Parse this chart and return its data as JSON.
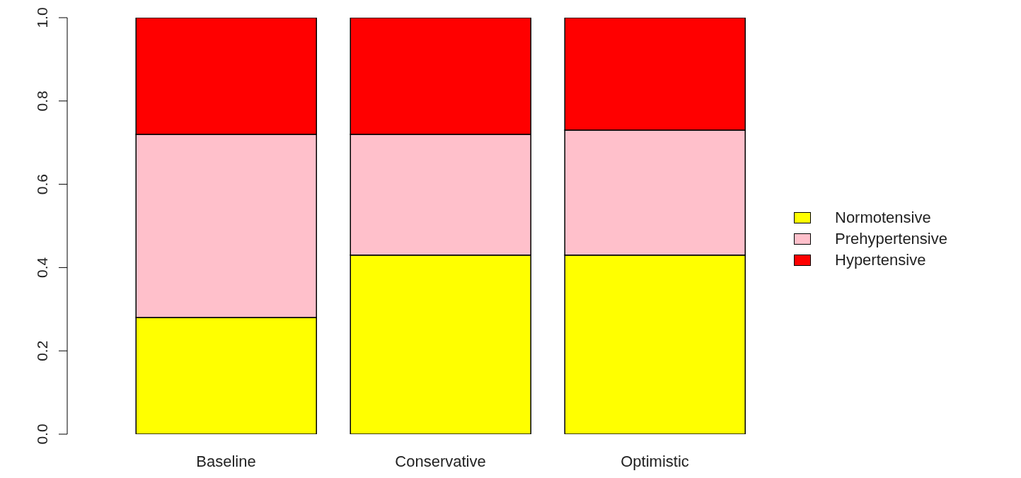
{
  "chart_data": {
    "type": "bar",
    "stacked": true,
    "categories": [
      "Baseline",
      "Conservative",
      "Optimistic"
    ],
    "series": [
      {
        "name": "Normotensive",
        "color": "#ffff00",
        "values": [
          0.28,
          0.43,
          0.43
        ]
      },
      {
        "name": "Prehypertensive",
        "color": "#ffc0cb",
        "values": [
          0.44,
          0.29,
          0.3
        ]
      },
      {
        "name": "Hypertensive",
        "color": "#ff0000",
        "values": [
          0.28,
          0.28,
          0.27
        ]
      }
    ],
    "ylim": [
      0,
      1
    ],
    "yticks": [
      {
        "value": 0,
        "label": "0.0"
      },
      0.2,
      0.4,
      0.6,
      0.8,
      {
        "value": 1,
        "label": "1.0"
      }
    ],
    "grid": false,
    "legend": "right"
  }
}
